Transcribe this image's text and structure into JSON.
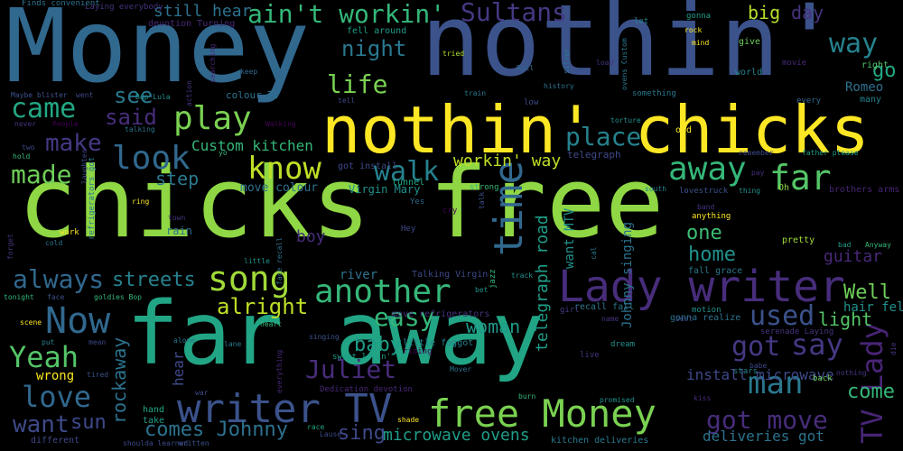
{
  "words": [
    {
      "text": "chicks free",
      "color": "#8fd744"
    },
    {
      "text": "Money",
      "color": "#31688e"
    },
    {
      "text": "nothin'",
      "color": "#3b528b"
    },
    {
      "text": "far away",
      "color": "#21a585"
    },
    {
      "text": "nothin' chicks",
      "color": "#fde725"
    },
    {
      "text": "Lady writer",
      "color": "#472d7b"
    },
    {
      "text": "writer TV",
      "color": "#3b528b"
    },
    {
      "text": "free Money",
      "color": "#7ad151"
    },
    {
      "text": "another",
      "color": "#35b779"
    },
    {
      "text": "Now",
      "color": "#31688e"
    },
    {
      "text": "song",
      "color": "#a0da39"
    },
    {
      "text": "time",
      "color": "#31688e"
    },
    {
      "text": "play",
      "color": "#7ad151"
    },
    {
      "text": "away",
      "color": "#35b779"
    },
    {
      "text": "far",
      "color": "#54c568"
    },
    {
      "text": "know",
      "color": "#bddf26"
    },
    {
      "text": "look",
      "color": "#31688e"
    },
    {
      "text": "walk",
      "color": "#26828e"
    },
    {
      "text": "Yeah",
      "color": "#54c568"
    },
    {
      "text": "love",
      "color": "#31688e"
    },
    {
      "text": "man",
      "color": "#2a788e"
    },
    {
      "text": "say",
      "color": "#443983"
    },
    {
      "text": "got",
      "color": "#443983"
    },
    {
      "text": "got move",
      "color": "#472d7b"
    },
    {
      "text": "TV Lady",
      "color": "#482475"
    },
    {
      "text": "Juliet",
      "color": "#472d7b"
    },
    {
      "text": "ain't workin'",
      "color": "#35b779"
    },
    {
      "text": "Sultans",
      "color": "#443983"
    },
    {
      "text": "way",
      "color": "#26828e"
    },
    {
      "text": "night",
      "color": "#2a788e"
    },
    {
      "text": "life",
      "color": "#7ad151"
    },
    {
      "text": "came",
      "color": "#22a884"
    },
    {
      "text": "made",
      "color": "#6ece58"
    },
    {
      "text": "make",
      "color": "#443983"
    },
    {
      "text": "said",
      "color": "#472d7b"
    },
    {
      "text": "see",
      "color": "#2a788e"
    },
    {
      "text": "place",
      "color": "#26828e"
    },
    {
      "text": "used",
      "color": "#3b528b"
    },
    {
      "text": "easy",
      "color": "#35b779"
    },
    {
      "text": "always",
      "color": "#31688e"
    },
    {
      "text": "streets",
      "color": "#26828e"
    },
    {
      "text": "alright",
      "color": "#bddf26"
    },
    {
      "text": "want",
      "color": "#3e4989"
    },
    {
      "text": "sun",
      "color": "#3e4989"
    },
    {
      "text": "comes Johnny",
      "color": "#2c728e"
    },
    {
      "text": "rockaway",
      "color": "#2c728e"
    },
    {
      "text": "woman",
      "color": "#1e9b8a"
    },
    {
      "text": "baby",
      "color": "#1f9e89"
    },
    {
      "text": "Well",
      "color": "#6ece58"
    },
    {
      "text": "light",
      "color": "#54c568"
    },
    {
      "text": "come",
      "color": "#35b779"
    },
    {
      "text": "one",
      "color": "#3dbc74"
    },
    {
      "text": "home",
      "color": "#21918c"
    },
    {
      "text": "step",
      "color": "#2a788e"
    },
    {
      "text": "Custom kitchen",
      "color": "#35b779"
    },
    {
      "text": "workin' way",
      "color": "#bddf26"
    },
    {
      "text": "guitar",
      "color": "#482878"
    },
    {
      "text": "go",
      "color": "#22a884"
    },
    {
      "text": "big",
      "color": "#b5de2b"
    },
    {
      "text": "day",
      "color": "#46337e"
    },
    {
      "text": "still hear",
      "color": "#2c728e"
    },
    {
      "text": "sing",
      "color": "#3e4989"
    },
    {
      "text": "telegraph road",
      "color": "#1f9e89"
    },
    {
      "text": "microwave ovens",
      "color": "#1f9e89"
    },
    {
      "text": "deliveries got",
      "color": "#2c728e"
    },
    {
      "text": "install microwave",
      "color": "#3e4989"
    },
    {
      "text": "hair fell",
      "color": "#21918c"
    },
    {
      "text": "Romeo",
      "color": "#2c728e"
    },
    {
      "text": "Johnny singing",
      "color": "#2c728e"
    },
    {
      "text": "want MTV",
      "color": "#21918c"
    },
    {
      "text": "river",
      "color": "#2c728e"
    },
    {
      "text": "boy",
      "color": "#472d7b"
    },
    {
      "text": "hear",
      "color": "#3e4989"
    },
    {
      "text": "move colour",
      "color": "#2c728e"
    },
    {
      "text": "fall grace",
      "color": "#2a788e"
    },
    {
      "text": "lovestruck",
      "color": "#3b528b"
    },
    {
      "text": "Talking Virgin",
      "color": "#3e4989"
    },
    {
      "text": "Virgin Mary",
      "color": "#21918c"
    },
    {
      "text": "got install",
      "color": "#3e4989"
    },
    {
      "text": "telegraph",
      "color": "#3e4989"
    },
    {
      "text": "colour TV",
      "color": "#2c728e"
    },
    {
      "text": "fell around",
      "color": "#1f9e89"
    },
    {
      "text": "move refrigerators",
      "color": "#46337e"
    },
    {
      "text": "recall fall",
      "color": "#2a788e"
    },
    {
      "text": "little faggot",
      "color": "#26828e"
    },
    {
      "text": "riding",
      "color": "#440154"
    },
    {
      "text": "sweet lovin'",
      "color": "#1f9e89"
    },
    {
      "text": "Dedication devotion",
      "color": "#482878"
    },
    {
      "text": "kitchen deliveries",
      "color": "#2a788e"
    },
    {
      "text": "gonna realize",
      "color": "#2c728e"
    },
    {
      "text": "serenade Laying",
      "color": "#46337e"
    },
    {
      "text": "wrong",
      "color": "#fde725"
    },
    {
      "text": "different",
      "color": "#3e4989"
    },
    {
      "text": "take",
      "color": "#1f9e89"
    },
    {
      "text": "hand",
      "color": "#22a884"
    },
    {
      "text": "devotion Turning",
      "color": "#482878"
    },
    {
      "text": "Laying everybody",
      "color": "#46337e"
    },
    {
      "text": "Finds convenient",
      "color": "#2c728e"
    },
    {
      "text": "Maybe blister",
      "color": "#3b528b"
    },
    {
      "text": "went",
      "color": "#3e4989"
    },
    {
      "text": "Bop Lula",
      "color": "#21918c"
    },
    {
      "text": "train",
      "color": "#2a788e"
    },
    {
      "text": "low",
      "color": "#3e4989"
    },
    {
      "text": "tunnel",
      "color": "#22a884"
    },
    {
      "text": "Hey",
      "color": "#3e4989"
    },
    {
      "text": "Yes",
      "color": "#31688e"
    },
    {
      "text": "cry",
      "color": "#440154"
    },
    {
      "text": "strong",
      "color": "#35b779"
    },
    {
      "text": "jazz",
      "color": "#35b779"
    },
    {
      "text": "bet",
      "color": "#21918c"
    },
    {
      "text": "track",
      "color": "#21918c"
    },
    {
      "text": "girl",
      "color": "#443983"
    },
    {
      "text": "name",
      "color": "#46337e"
    },
    {
      "text": "motion",
      "color": "#21918c"
    },
    {
      "text": "best",
      "color": "#3b528b"
    },
    {
      "text": "dream",
      "color": "#21918c"
    },
    {
      "text": "live",
      "color": "#46337e"
    },
    {
      "text": "Mover",
      "color": "#2c728e"
    },
    {
      "text": "burn",
      "color": "#35b779"
    },
    {
      "text": "promised",
      "color": "#21918c"
    },
    {
      "text": "kiss",
      "color": "#472d7b"
    },
    {
      "text": "stars",
      "color": "#26828e"
    },
    {
      "text": "babe",
      "color": "#3e4989"
    },
    {
      "text": "back",
      "color": "#6ece58"
    },
    {
      "text": "nothing",
      "color": "#46337e"
    },
    {
      "text": "Oh",
      "color": "#8fd744"
    },
    {
      "text": "pretty",
      "color": "#a0da39"
    },
    {
      "text": "bad",
      "color": "#1f9e89"
    },
    {
      "text": "Anyway",
      "color": "#35b779"
    },
    {
      "text": "brothers arms",
      "color": "#482475"
    },
    {
      "text": "thing",
      "color": "#21918c"
    },
    {
      "text": "pay",
      "color": "#472d7b"
    },
    {
      "text": "remember",
      "color": "#3e4989"
    },
    {
      "text": "father please",
      "color": "#1f9e89"
    },
    {
      "text": "south",
      "color": "#26828e"
    },
    {
      "text": "every",
      "color": "#31688e"
    },
    {
      "text": "many",
      "color": "#26828e"
    },
    {
      "text": "right",
      "color": "#54c568"
    },
    {
      "text": "world",
      "color": "#26828e"
    },
    {
      "text": "movie",
      "color": "#482878"
    },
    {
      "text": "give",
      "color": "#6ece58"
    },
    {
      "text": "mind",
      "color": "#fde725"
    },
    {
      "text": "rock",
      "color": "#fde725"
    },
    {
      "text": "gonna",
      "color": "#1f9e89"
    },
    {
      "text": "let",
      "color": "#26828e"
    },
    {
      "text": "load",
      "color": "#46337e"
    },
    {
      "text": "something",
      "color": "#2a788e"
    },
    {
      "text": "torture",
      "color": "#21918c"
    },
    {
      "text": "old",
      "color": "#fde725"
    },
    {
      "text": "history",
      "color": "#2c728e"
    },
    {
      "text": "Roll",
      "color": "#31688e"
    },
    {
      "text": "silver",
      "color": "#2a788e"
    },
    {
      "text": "ovens Custom",
      "color": "#2a788e"
    },
    {
      "text": "tried",
      "color": "#b5de2b"
    },
    {
      "text": "yo",
      "color": "#35b779"
    },
    {
      "text": "laughter",
      "color": "#3e4989"
    },
    {
      "text": "ring",
      "color": "#fde725"
    },
    {
      "text": "town",
      "color": "#46337e"
    },
    {
      "text": "rain",
      "color": "#2c728e"
    },
    {
      "text": "little",
      "color": "#21918c"
    },
    {
      "text": "face recall",
      "color": "#2c728e"
    },
    {
      "text": "cold",
      "color": "#2c728e"
    },
    {
      "text": "work",
      "color": "#fde725"
    },
    {
      "text": "forget",
      "color": "#46337e"
    },
    {
      "text": "tonight",
      "color": "#35b779"
    },
    {
      "text": "face",
      "color": "#3b528b"
    },
    {
      "text": "goldies Bop",
      "color": "#35b779"
    },
    {
      "text": "scene",
      "color": "#fde725"
    },
    {
      "text": "put",
      "color": "#26828e"
    },
    {
      "text": "mean",
      "color": "#3e4989"
    },
    {
      "text": "alone",
      "color": "#2a788e"
    },
    {
      "text": "lane",
      "color": "#2a788e"
    },
    {
      "text": "heart",
      "color": "#35b779"
    },
    {
      "text": "singing",
      "color": "#3b528b"
    },
    {
      "text": "everything",
      "color": "#482878"
    },
    {
      "text": "tired",
      "color": "#3b528b"
    },
    {
      "text": "war",
      "color": "#3e4989"
    },
    {
      "text": "race",
      "color": "#22a884"
    },
    {
      "text": "Lause",
      "color": "#3e4989"
    },
    {
      "text": "shade",
      "color": "#fde725"
    },
    {
      "text": "shoulda learned",
      "color": "#3e4989"
    },
    {
      "text": "written",
      "color": "#3b528b"
    },
    {
      "text": "never",
      "color": "#46337e"
    },
    {
      "text": "People",
      "color": "#440154"
    },
    {
      "text": "two",
      "color": "#3e4989"
    },
    {
      "text": "hold",
      "color": "#35b779"
    },
    {
      "text": "Walking",
      "color": "#440154"
    },
    {
      "text": "talking",
      "color": "#2c728e"
    },
    {
      "text": "refrigerators got",
      "color": "#2a788e"
    },
    {
      "text": "die",
      "color": "#46337e"
    },
    {
      "text": "band",
      "color": "#46337e"
    },
    {
      "text": "anything",
      "color": "#fde725"
    },
    {
      "text": "cal",
      "color": "#2a788e"
    },
    {
      "text": "searching",
      "color": "#482878"
    },
    {
      "text": "action",
      "color": "#46337e"
    },
    {
      "text": "keep",
      "color": "#31688e"
    },
    {
      "text": "tell",
      "color": "#3e4989"
    },
    {
      "text": "talk",
      "color": "#3b528b"
    }
  ]
}
